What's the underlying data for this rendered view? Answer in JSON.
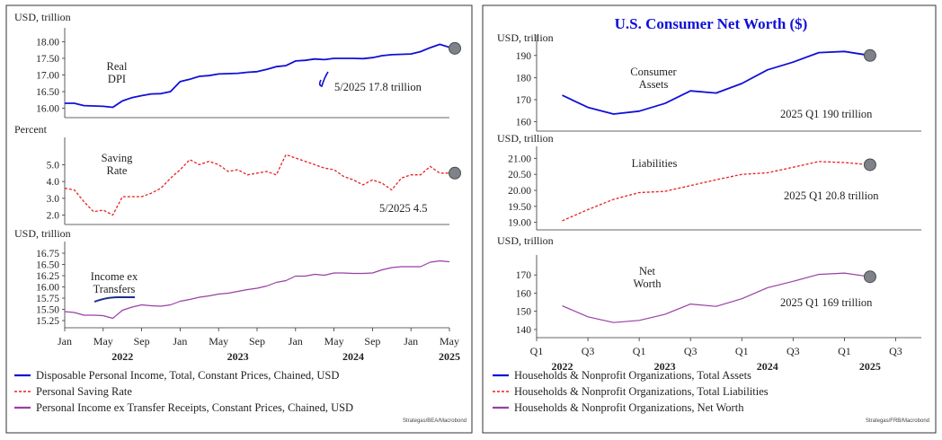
{
  "colors": {
    "blue": "#1010d8",
    "red": "#e82020",
    "purple": "#9a3fa6",
    "marker": "#7f8288",
    "frame": "#333333"
  },
  "chart_data": [
    {
      "type": "line",
      "panel": "left-top",
      "unit_label": "USD, trillion",
      "annotation": "Real\nDPI",
      "value_label": "5/2025 17.8 trillion",
      "ylim": [
        15.8,
        18.2
      ],
      "yticks": [
        "16.00",
        "16.50",
        "17.00",
        "17.50",
        "18.00"
      ],
      "ytick_values": [
        16.0,
        16.5,
        17.0,
        17.5,
        18.0
      ],
      "series": [
        {
          "legend": "Disposable Personal Income, Total, Constant Prices, Chained, USD",
          "color": "blue",
          "style": "solid",
          "x": [
            "2022-01",
            "2022-02",
            "2022-03",
            "2022-04",
            "2022-05",
            "2022-06",
            "2022-07",
            "2022-08",
            "2022-09",
            "2022-10",
            "2022-11",
            "2022-12",
            "2023-01",
            "2023-02",
            "2023-03",
            "2023-04",
            "2023-05",
            "2023-06",
            "2023-07",
            "2023-08",
            "2023-09",
            "2023-10",
            "2023-11",
            "2023-12",
            "2024-01",
            "2024-02",
            "2024-03",
            "2024-04",
            "2024-05",
            "2024-06",
            "2024-07",
            "2024-08",
            "2024-09",
            "2024-10",
            "2024-11",
            "2024-12",
            "2025-01",
            "2025-02",
            "2025-03",
            "2025-04",
            "2025-05"
          ],
          "values": [
            16.15,
            16.15,
            16.08,
            16.07,
            16.06,
            16.03,
            16.22,
            16.32,
            16.38,
            16.43,
            16.44,
            16.5,
            16.8,
            16.87,
            16.96,
            16.98,
            17.03,
            17.04,
            17.05,
            17.08,
            17.1,
            17.17,
            17.25,
            17.28,
            17.42,
            17.44,
            17.48,
            17.46,
            17.5,
            17.5,
            17.5,
            17.49,
            17.52,
            17.58,
            17.61,
            17.62,
            17.63,
            17.7,
            17.82,
            17.92,
            17.83
          ]
        }
      ],
      "marker": {
        "x": "2025-05",
        "value": 17.8
      }
    },
    {
      "type": "line",
      "panel": "left-middle",
      "unit_label": "Percent",
      "annotation": "Saving\nRate",
      "value_label": "5/2025 4.5",
      "ylim": [
        1.6,
        6.2
      ],
      "yticks": [
        "2.0",
        "3.0",
        "4.0",
        "5.0"
      ],
      "ytick_values": [
        2.0,
        3.0,
        4.0,
        5.0
      ],
      "series": [
        {
          "legend": "Personal Saving Rate",
          "color": "red",
          "style": "dashed",
          "x": [
            "2022-01",
            "2022-02",
            "2022-03",
            "2022-04",
            "2022-05",
            "2022-06",
            "2022-07",
            "2022-08",
            "2022-09",
            "2022-10",
            "2022-11",
            "2022-12",
            "2023-01",
            "2023-02",
            "2023-03",
            "2023-04",
            "2023-05",
            "2023-06",
            "2023-07",
            "2023-08",
            "2023-09",
            "2023-10",
            "2023-11",
            "2023-12",
            "2024-01",
            "2024-02",
            "2024-03",
            "2024-04",
            "2024-05",
            "2024-06",
            "2024-07",
            "2024-08",
            "2024-09",
            "2024-10",
            "2024-11",
            "2024-12",
            "2025-01",
            "2025-02",
            "2025-03",
            "2025-04",
            "2025-05"
          ],
          "values": [
            3.6,
            3.5,
            2.8,
            2.2,
            2.3,
            2.0,
            3.1,
            3.1,
            3.1,
            3.3,
            3.6,
            4.2,
            4.7,
            5.3,
            5.0,
            5.2,
            5.0,
            4.6,
            4.7,
            4.4,
            4.5,
            4.6,
            4.4,
            5.6,
            5.4,
            5.2,
            5.0,
            4.8,
            4.7,
            4.3,
            4.1,
            3.8,
            4.1,
            3.9,
            3.5,
            4.2,
            4.4,
            4.4,
            4.9,
            4.5,
            4.5
          ]
        }
      ],
      "marker": {
        "x": "2025-05",
        "value": 4.5
      }
    },
    {
      "type": "line",
      "panel": "left-bottom",
      "unit_label": "USD, trillion",
      "annotation": "Income ex\nTransfers",
      "ylim": [
        15.15,
        16.85
      ],
      "yticks": [
        "15.25",
        "15.50",
        "15.75",
        "16.00",
        "16.25",
        "16.50",
        "16.75"
      ],
      "ytick_values": [
        15.25,
        15.5,
        15.75,
        16.0,
        16.25,
        16.5,
        16.75
      ],
      "xticks": [
        "Jan",
        "May",
        "Sep",
        "Jan",
        "May",
        "Sep",
        "Jan",
        "May",
        "Sep",
        "Jan",
        "May"
      ],
      "xtick_dates": [
        "2022-01",
        "2022-05",
        "2022-09",
        "2023-01",
        "2023-05",
        "2023-09",
        "2024-01",
        "2024-05",
        "2024-09",
        "2025-01",
        "2025-05"
      ],
      "years": [
        "2022",
        "2023",
        "2024",
        "2025"
      ],
      "year_dates": [
        "2022-07",
        "2023-07",
        "2024-07",
        "2025-05"
      ],
      "series": [
        {
          "legend": "Personal Income ex Transfer Receipts, Constant Prices, Chained, USD",
          "color": "purple",
          "style": "solid",
          "x": [
            "2022-01",
            "2022-02",
            "2022-03",
            "2022-04",
            "2022-05",
            "2022-06",
            "2022-07",
            "2022-08",
            "2022-09",
            "2022-10",
            "2022-11",
            "2022-12",
            "2023-01",
            "2023-02",
            "2023-03",
            "2023-04",
            "2023-05",
            "2023-06",
            "2023-07",
            "2023-08",
            "2023-09",
            "2023-10",
            "2023-11",
            "2023-12",
            "2024-01",
            "2024-02",
            "2024-03",
            "2024-04",
            "2024-05",
            "2024-06",
            "2024-07",
            "2024-08",
            "2024-09",
            "2024-10",
            "2024-11",
            "2024-12",
            "2025-01",
            "2025-02",
            "2025-03",
            "2025-04",
            "2025-05"
          ],
          "values": [
            15.45,
            15.43,
            15.37,
            15.37,
            15.36,
            15.3,
            15.48,
            15.55,
            15.6,
            15.58,
            15.57,
            15.6,
            15.68,
            15.72,
            15.77,
            15.8,
            15.84,
            15.86,
            15.9,
            15.94,
            15.97,
            16.02,
            16.1,
            16.14,
            16.24,
            16.24,
            16.28,
            16.26,
            16.31,
            16.31,
            16.3,
            16.3,
            16.31,
            16.38,
            16.43,
            16.45,
            16.45,
            16.45,
            16.55,
            16.58,
            16.56
          ]
        }
      ]
    },
    {
      "type": "line",
      "panel": "right-top",
      "unit_label": "USD, trillion",
      "annotation": "Consumer\nAssets",
      "value_label": "2025 Q1 190 trillion",
      "ylim": [
        157,
        196
      ],
      "yticks": [
        "160",
        "170",
        "180",
        "190"
      ],
      "ytick_values": [
        160,
        170,
        180,
        190
      ],
      "series": [
        {
          "legend": "Households & Nonprofit Organizations, Total Assets",
          "color": "blue",
          "style": "solid",
          "x": [
            "2022Q1",
            "2022Q2",
            "2022Q3",
            "2022Q4",
            "2023Q1",
            "2023Q2",
            "2023Q3",
            "2023Q4",
            "2024Q1",
            "2024Q2",
            "2024Q3",
            "2024Q4",
            "2025Q1"
          ],
          "values": [
            172,
            166.5,
            163.5,
            164.8,
            168.3,
            174,
            173,
            177.3,
            183.5,
            187,
            191.3,
            191.8,
            190
          ]
        }
      ],
      "marker": {
        "x": "2025Q1",
        "value": 190
      }
    },
    {
      "type": "line",
      "panel": "right-middle",
      "unit_label": "USD, trillion",
      "annotation": "Liabilities",
      "value_label": "2025 Q1 20.8 trillion",
      "ylim": [
        18.85,
        21.15
      ],
      "yticks": [
        "19.00",
        "19.50",
        "20.00",
        "20.50",
        "21.00"
      ],
      "ytick_values": [
        19.0,
        19.5,
        20.0,
        20.5,
        21.0
      ],
      "series": [
        {
          "legend": "Households & Nonprofit Organizations, Total Liabilities",
          "color": "red",
          "style": "dashed",
          "x": [
            "2022Q1",
            "2022Q2",
            "2022Q3",
            "2022Q4",
            "2023Q1",
            "2023Q2",
            "2023Q3",
            "2023Q4",
            "2024Q1",
            "2024Q2",
            "2024Q3",
            "2024Q4",
            "2025Q1"
          ],
          "values": [
            19.05,
            19.4,
            19.72,
            19.93,
            19.97,
            20.15,
            20.33,
            20.5,
            20.55,
            20.72,
            20.9,
            20.87,
            20.8
          ]
        }
      ],
      "marker": {
        "x": "2025Q1",
        "value": 20.8
      }
    },
    {
      "type": "line",
      "panel": "right-bottom",
      "unit_label": "USD, trillion",
      "annotation": "Net\nWorth",
      "value_label": "2025 Q1 169 trillion",
      "ylim": [
        137,
        177
      ],
      "yticks": [
        "140",
        "150",
        "160",
        "170"
      ],
      "ytick_values": [
        140,
        150,
        160,
        170
      ],
      "xticks": [
        "Q1",
        "Q3",
        "Q1",
        "Q3",
        "Q1",
        "Q3",
        "Q1",
        "Q3"
      ],
      "xtick_positions": [
        "2021Q4",
        "2022Q2",
        "2022Q4",
        "2023Q2",
        "2023Q4",
        "2024Q2",
        "2024Q4",
        "2025Q2"
      ],
      "years": [
        "2022",
        "2023",
        "2024",
        "2025"
      ],
      "year_positions": [
        "2022Q1",
        "2023Q1",
        "2024Q1",
        "2025Q1"
      ],
      "series": [
        {
          "legend": "Households & Nonprofit Organizations, Net Worth",
          "color": "purple",
          "style": "solid",
          "x": [
            "2022Q1",
            "2022Q2",
            "2022Q3",
            "2022Q4",
            "2023Q1",
            "2023Q2",
            "2023Q3",
            "2023Q4",
            "2024Q1",
            "2024Q2",
            "2024Q3",
            "2024Q4",
            "2025Q1"
          ],
          "values": [
            153,
            147,
            143.8,
            145,
            148.3,
            154,
            152.7,
            156.9,
            163,
            166.5,
            170.3,
            171,
            169
          ]
        }
      ],
      "marker": {
        "x": "2025Q1",
        "value": 169
      }
    }
  ],
  "left": {
    "legend": [
      {
        "label": "Disposable Personal Income, Total, Constant Prices, Chained, USD",
        "color": "blue",
        "style": "solid"
      },
      {
        "label": "Personal Saving Rate",
        "color": "red",
        "style": "dashed"
      },
      {
        "label": "Personal Income ex Transfer Receipts, Constant Prices, Chained, USD",
        "color": "purple",
        "style": "solid"
      }
    ],
    "source": "Strategas/BEA/Macrobond"
  },
  "right": {
    "title": "U.S. Consumer Net Worth ($)",
    "legend": [
      {
        "label": "Households & Nonprofit Organizations, Total Assets",
        "color": "blue",
        "style": "solid"
      },
      {
        "label": "Households & Nonprofit Organizations, Total Liabilities",
        "color": "red",
        "style": "dashed"
      },
      {
        "label": "Households & Nonprofit Organizations, Net Worth",
        "color": "purple",
        "style": "solid"
      }
    ],
    "source": "Strategas/FRB/Macrobond"
  }
}
